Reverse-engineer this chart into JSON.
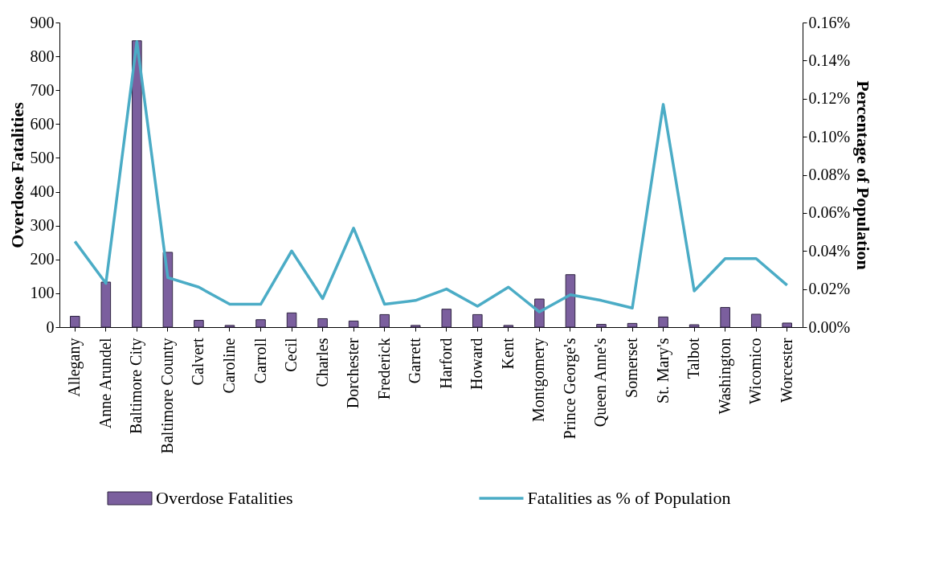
{
  "chart_data": {
    "type": "bar",
    "ylabel": "Overdose Fatalities",
    "y2label": "Percentage of Population",
    "categories": [
      "Allegany",
      "Anne Arundel",
      "Baltimore City",
      "Baltimore County",
      "Calvert",
      "Caroline",
      "Carroll",
      "Cecil",
      "Charles",
      "Dorchester",
      "Frederick",
      "Garrett",
      "Harford",
      "Howard",
      "Kent",
      "Montgomery",
      "Prince George's",
      "Queen Anne's",
      "Somerset",
      "St. Mary's",
      "Talbot",
      "Washington",
      "Wicomico",
      "Worcester"
    ],
    "series": [
      {
        "name": "Overdose Fatalities",
        "color": "#7b5f9e",
        "values": [
          32,
          133,
          846,
          221,
          20,
          5,
          22,
          42,
          25,
          18,
          37,
          5,
          53,
          37,
          5,
          83,
          155,
          8,
          11,
          30,
          7,
          58,
          38,
          12
        ]
      },
      {
        "name": "Fatalities as % of Population",
        "type": "line",
        "axis": "y2",
        "color": "#4bacc6",
        "values": [
          0.045,
          0.023,
          0.15,
          0.026,
          0.021,
          0.012,
          0.012,
          0.04,
          0.015,
          0.052,
          0.012,
          0.014,
          0.02,
          0.011,
          0.021,
          0.008,
          0.017,
          0.014,
          0.01,
          0.117,
          0.019,
          0.036,
          0.036,
          0.022
        ]
      }
    ],
    "ylim": [
      0,
      900
    ],
    "yticks": [
      0,
      100,
      200,
      300,
      400,
      500,
      600,
      700,
      800,
      900
    ],
    "y2lim": [
      0,
      0.16
    ],
    "y2ticks": [
      {
        "value": 0,
        "label": "0.00%"
      },
      {
        "value": 0.02,
        "label": "0.02%"
      },
      {
        "value": 0.04,
        "label": "0.04%"
      },
      {
        "value": 0.06,
        "label": "0.06%"
      },
      {
        "value": 0.08,
        "label": "0.08%"
      },
      {
        "value": 0.1,
        "label": "0.10%"
      },
      {
        "value": 0.12,
        "label": "0.12%"
      },
      {
        "value": 0.14,
        "label": "0.14%"
      },
      {
        "value": 0.16,
        "label": "0.16%"
      }
    ],
    "grid": false,
    "legend": "bottom"
  }
}
